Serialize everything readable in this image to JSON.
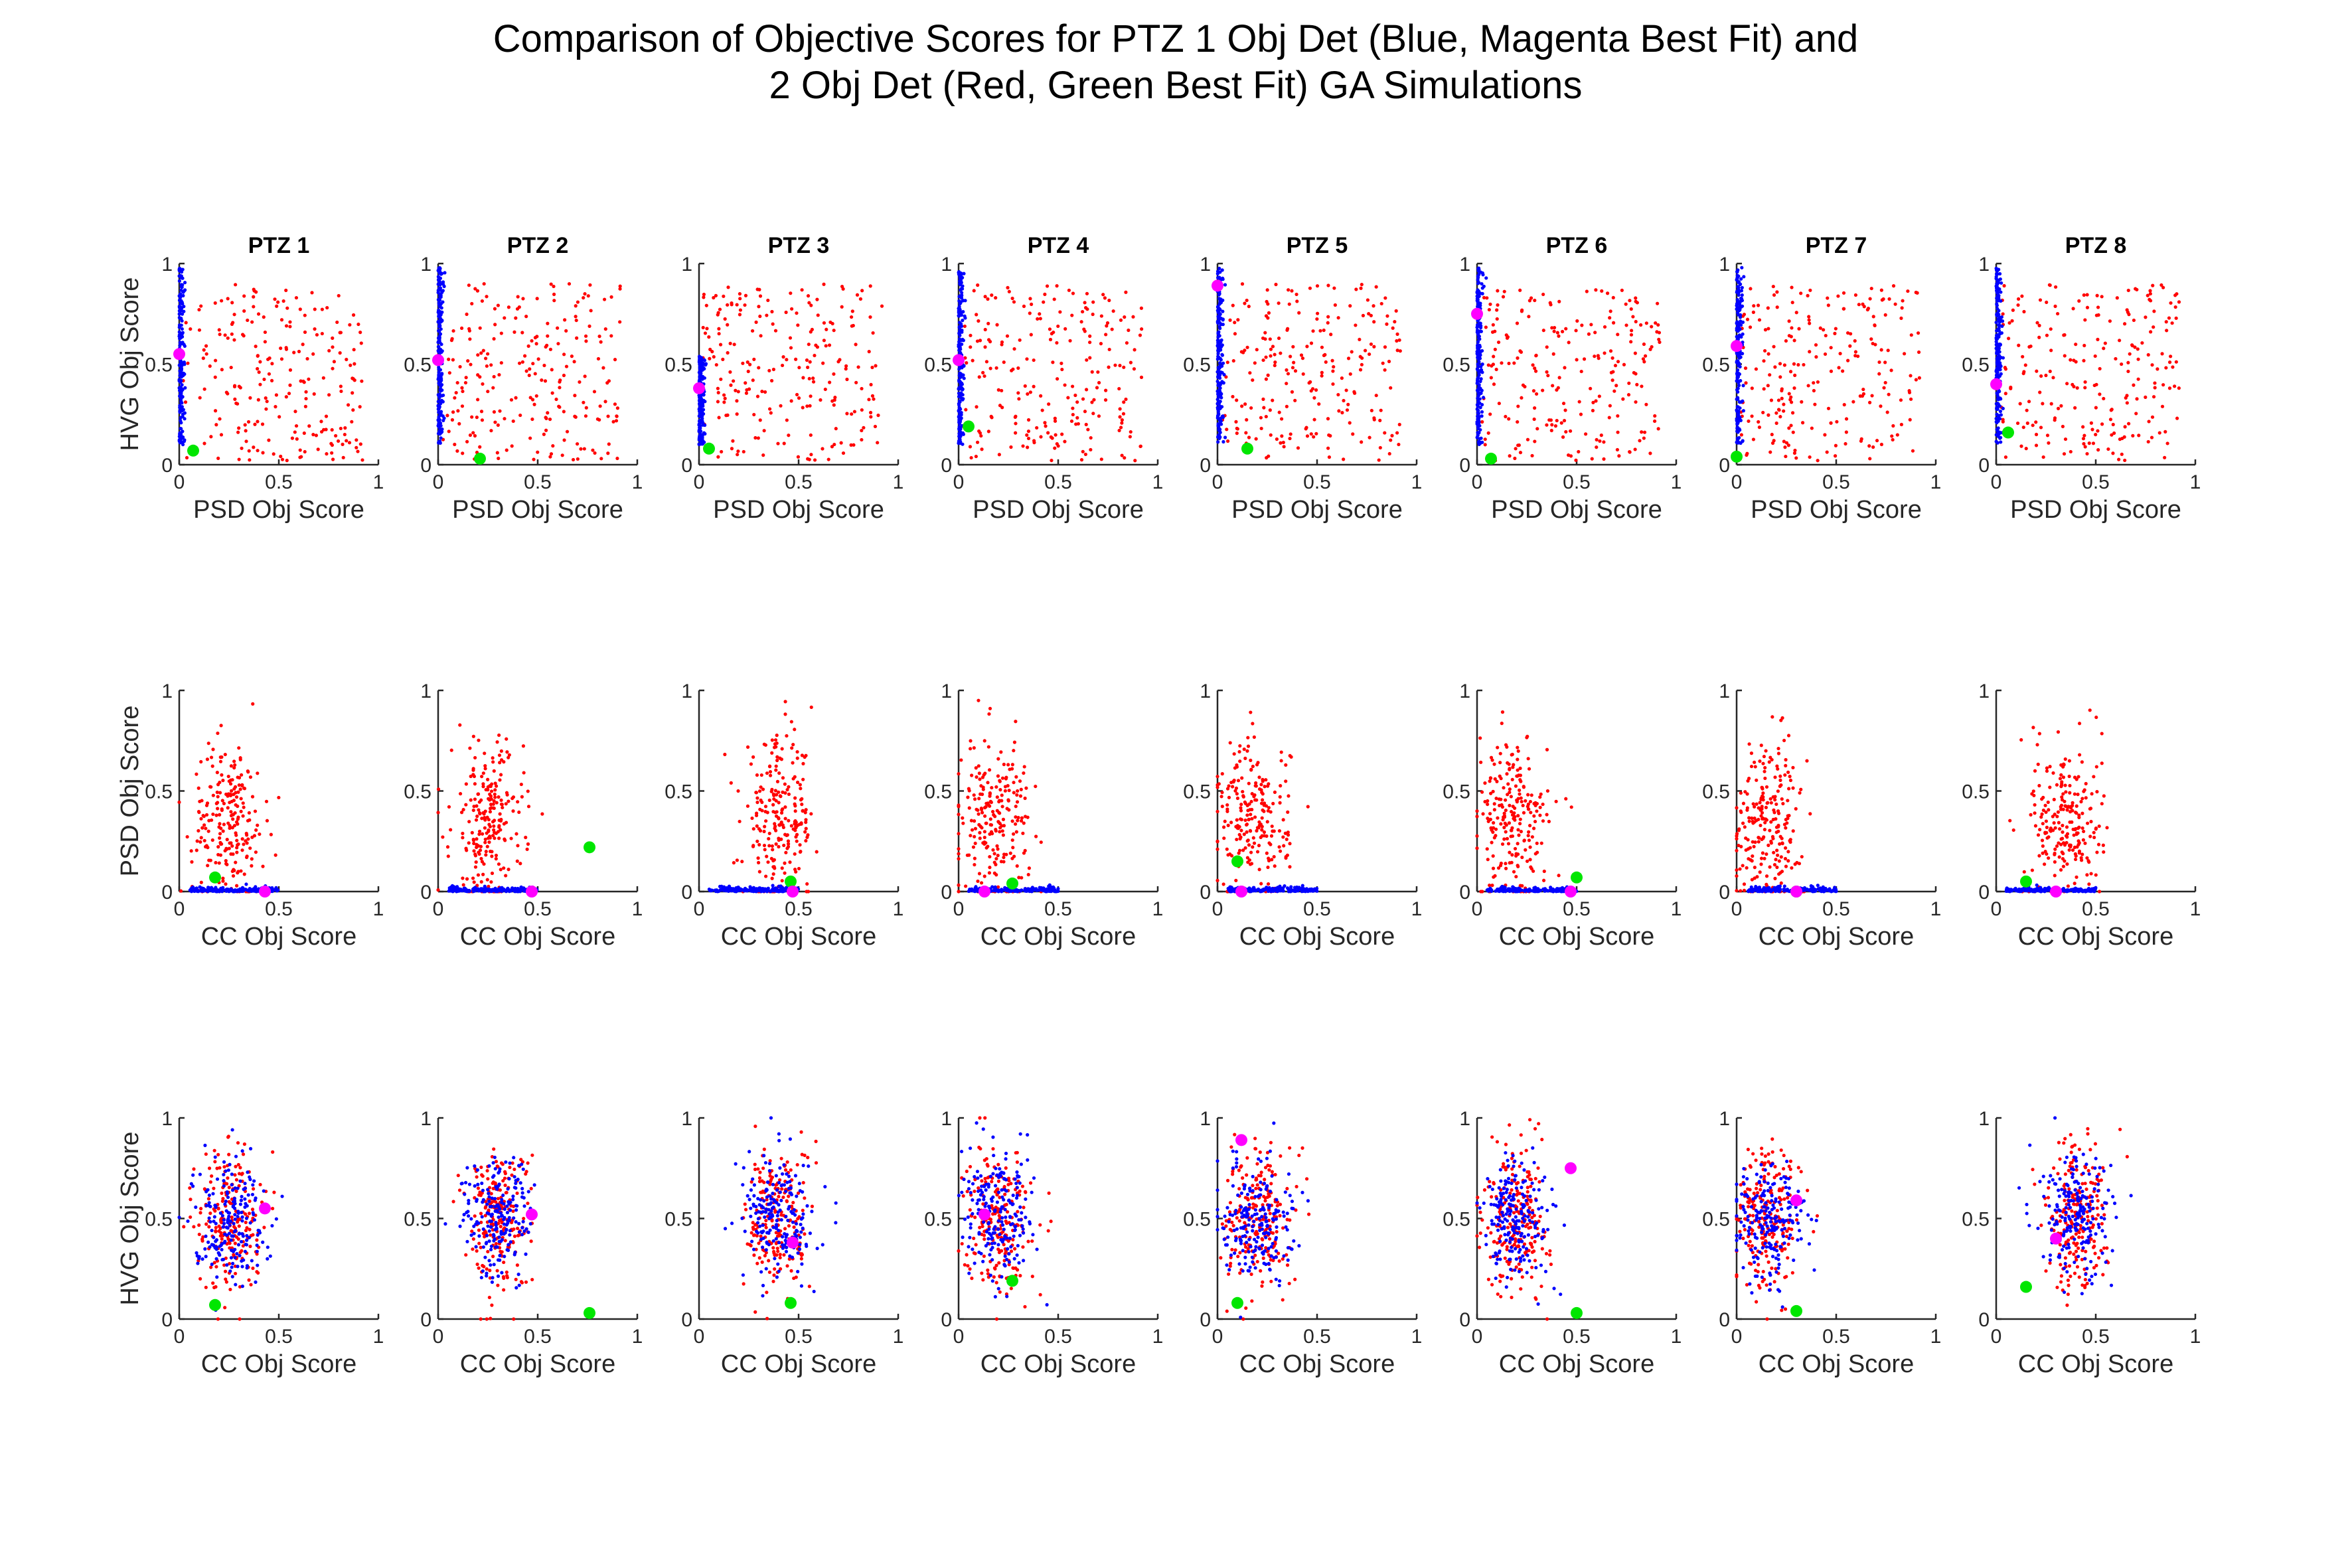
{
  "figure": {
    "title_line1": "Comparison of Objective Scores for PTZ 1 Obj Det (Blue, Magenta Best Fit) and",
    "title_line2": "2 Obj Det (Red, Green Best Fit) GA Simulations"
  },
  "colors": {
    "one_obj_points": "#0000ff",
    "two_obj_points": "#ff0000",
    "one_obj_best": "#ff00ff",
    "two_obj_best": "#00e600"
  },
  "chart_data": {
    "type": "scatter",
    "grid": false,
    "legend": "none",
    "columns": [
      "PTZ 1",
      "PTZ 2",
      "PTZ 3",
      "PTZ 4",
      "PTZ 5",
      "PTZ 6",
      "PTZ 7",
      "PTZ 8"
    ],
    "rows": [
      {
        "xlabel": "PSD Obj Score",
        "ylabel": "HVG Obj Score"
      },
      {
        "xlabel": "CC Obj Score",
        "ylabel": "PSD Obj Score"
      },
      {
        "xlabel": "CC Obj Score",
        "ylabel": "HVG Obj Score"
      }
    ],
    "xlim": [
      0,
      1
    ],
    "ylim": [
      0,
      1
    ],
    "xticks": [
      "0",
      "0.5",
      "1"
    ],
    "yticks": [
      "0",
      "0.5",
      "1"
    ],
    "best_fit": [
      [
        {
          "magenta": [
            0.0,
            0.55
          ],
          "green": [
            0.07,
            0.07
          ]
        },
        {
          "magenta": [
            0.0,
            0.52
          ],
          "green": [
            0.21,
            0.03
          ]
        },
        {
          "magenta": [
            0.0,
            0.38
          ],
          "green": [
            0.05,
            0.08
          ]
        },
        {
          "magenta": [
            0.0,
            0.52
          ],
          "green": [
            0.05,
            0.19
          ]
        },
        {
          "magenta": [
            0.0,
            0.89
          ],
          "green": [
            0.15,
            0.08
          ]
        },
        {
          "magenta": [
            0.0,
            0.75
          ],
          "green": [
            0.07,
            0.03
          ]
        },
        {
          "magenta": [
            0.0,
            0.59
          ],
          "green": [
            0.0,
            0.04
          ]
        },
        {
          "magenta": [
            0.0,
            0.4
          ],
          "green": [
            0.06,
            0.16
          ]
        }
      ],
      [
        {
          "magenta": [
            0.43,
            0.0
          ],
          "green": [
            0.18,
            0.07
          ]
        },
        {
          "magenta": [
            0.47,
            0.0
          ],
          "green": [
            0.76,
            0.22
          ]
        },
        {
          "magenta": [
            0.47,
            0.0
          ],
          "green": [
            0.46,
            0.05
          ]
        },
        {
          "magenta": [
            0.13,
            0.0
          ],
          "green": [
            0.27,
            0.04
          ]
        },
        {
          "magenta": [
            0.12,
            0.0
          ],
          "green": [
            0.1,
            0.15
          ]
        },
        {
          "magenta": [
            0.47,
            0.0
          ],
          "green": [
            0.5,
            0.07
          ]
        },
        {
          "magenta": [
            0.3,
            0.0
          ],
          "green": [
            0.3,
            0.0
          ]
        },
        {
          "magenta": [
            0.3,
            0.0
          ],
          "green": [
            0.15,
            0.05
          ]
        }
      ],
      [
        {
          "magenta": [
            0.43,
            0.55
          ],
          "green": [
            0.18,
            0.07
          ]
        },
        {
          "magenta": [
            0.47,
            0.52
          ],
          "green": [
            0.76,
            0.03
          ]
        },
        {
          "magenta": [
            0.47,
            0.38
          ],
          "green": [
            0.46,
            0.08
          ]
        },
        {
          "magenta": [
            0.13,
            0.52
          ],
          "green": [
            0.27,
            0.19
          ]
        },
        {
          "magenta": [
            0.12,
            0.89
          ],
          "green": [
            0.1,
            0.08
          ]
        },
        {
          "magenta": [
            0.47,
            0.75
          ],
          "green": [
            0.5,
            0.03
          ]
        },
        {
          "magenta": [
            0.3,
            0.59
          ],
          "green": [
            0.3,
            0.04
          ]
        },
        {
          "magenta": [
            0.3,
            0.4
          ],
          "green": [
            0.15,
            0.16
          ]
        }
      ]
    ]
  }
}
